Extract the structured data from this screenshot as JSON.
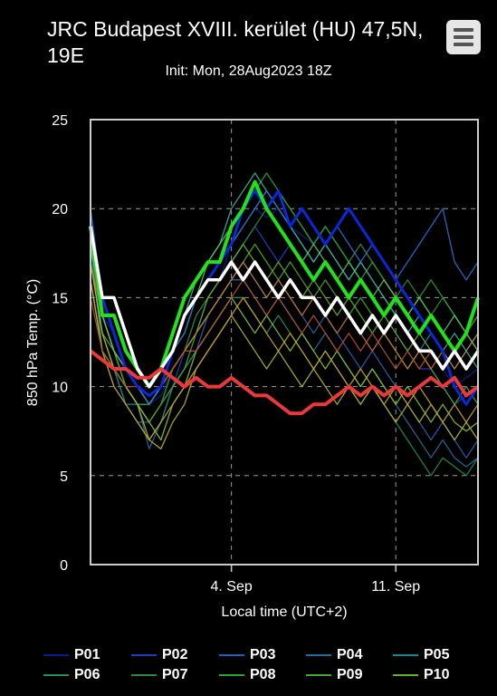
{
  "header": {
    "title": "JRC Budapest XVIII. kerület (HU) 47,5N, 19E",
    "subtitle": "Init: Mon, 28Aug2023 18Z",
    "menu_icon": "hamburger-menu-icon"
  },
  "chart_data": {
    "type": "line",
    "title": "JRC Budapest XVIII. kerület (HU) 47,5N, 19E",
    "subtitle": "Init: Mon, 28Aug2023 18Z",
    "xlabel": "Local time (UTC+2)",
    "ylabel": "850 hPa Temp. (°C)",
    "ylim": [
      0,
      25
    ],
    "yticks": [
      0,
      5,
      10,
      15,
      20,
      25
    ],
    "xlim": [
      "2023-08-29T00:00",
      "2023-09-14T12:00"
    ],
    "xticks": [
      {
        "x": "2023-09-04T00:00",
        "label": "4. Sep"
      },
      {
        "x": "2023-09-11T00:00",
        "label": "11. Sep"
      }
    ],
    "grid": true,
    "legend_position": "bottom",
    "x": [
      "2023-08-29T00:00",
      "2023-08-29T12:00",
      "2023-08-30T00:00",
      "2023-08-30T12:00",
      "2023-08-31T00:00",
      "2023-08-31T12:00",
      "2023-09-01T00:00",
      "2023-09-01T12:00",
      "2023-09-02T00:00",
      "2023-09-02T12:00",
      "2023-09-03T00:00",
      "2023-09-03T12:00",
      "2023-09-04T00:00",
      "2023-09-04T12:00",
      "2023-09-05T00:00",
      "2023-09-05T12:00",
      "2023-09-06T00:00",
      "2023-09-06T12:00",
      "2023-09-07T00:00",
      "2023-09-07T12:00",
      "2023-09-08T00:00",
      "2023-09-08T12:00",
      "2023-09-09T00:00",
      "2023-09-09T12:00",
      "2023-09-10T00:00",
      "2023-09-10T12:00",
      "2023-09-11T00:00",
      "2023-09-11T12:00",
      "2023-09-12T00:00",
      "2023-09-12T12:00",
      "2023-09-13T00:00",
      "2023-09-13T12:00",
      "2023-09-14T00:00",
      "2023-09-14T12:00"
    ],
    "series": [
      {
        "name": "P01",
        "color": "#0b1f8c",
        "values": [
          19,
          14,
          13,
          11,
          10,
          9,
          9.5,
          11,
          12,
          14,
          15,
          16,
          18,
          19,
          20,
          19.5,
          20,
          19,
          18.5,
          18,
          19,
          18,
          17,
          18,
          17,
          16,
          15,
          14,
          13,
          12,
          11,
          10,
          10.5,
          11
        ]
      },
      {
        "name": "P02",
        "color": "#1f3fbf",
        "values": [
          18,
          13,
          12,
          10,
          9,
          8,
          9,
          10,
          12,
          13,
          15,
          16,
          17,
          18,
          19,
          18,
          17,
          18,
          17,
          16,
          17,
          16,
          15,
          16,
          15,
          14,
          13,
          12,
          11,
          11,
          10,
          9,
          9.5,
          10
        ]
      },
      {
        "name": "P03",
        "color": "#2a5fb0",
        "values": [
          20,
          14,
          12,
          10,
          9,
          6.5,
          8,
          10,
          11,
          12,
          14,
          15,
          16,
          17,
          16,
          15,
          16,
          15,
          14,
          13,
          14,
          13,
          12,
          11,
          12,
          11,
          10,
          9,
          8,
          7,
          8,
          7,
          6,
          7
        ]
      },
      {
        "name": "P04",
        "color": "#1f6f99",
        "values": [
          17,
          13,
          11,
          9,
          8,
          8,
          9,
          11,
          12,
          13,
          14,
          15,
          16,
          16,
          15,
          14,
          15,
          14,
          13,
          12,
          13,
          12,
          11,
          10,
          11,
          10,
          9,
          8,
          7,
          6,
          7,
          6,
          5.5,
          6
        ]
      },
      {
        "name": "P05",
        "color": "#1a8a8a",
        "values": [
          18,
          12,
          11,
          9,
          9,
          9,
          10,
          12,
          13,
          15,
          16,
          17,
          18,
          19,
          20,
          21,
          20,
          19,
          18,
          17,
          18,
          17,
          16,
          17,
          16,
          15,
          14,
          13,
          12,
          13,
          12,
          11,
          12,
          13
        ]
      },
      {
        "name": "P06",
        "color": "#1e8f5a",
        "values": [
          16,
          12,
          10,
          9,
          8,
          7,
          8,
          10,
          11,
          12,
          13,
          14,
          15,
          15,
          14,
          13,
          14,
          13,
          12,
          11,
          12,
          11,
          10,
          9,
          10,
          9,
          8,
          7,
          6,
          5,
          6,
          5.5,
          5,
          6
        ]
      },
      {
        "name": "P07",
        "color": "#2e8b3a",
        "values": [
          17,
          13,
          11,
          10,
          9,
          8,
          9,
          11,
          12,
          14,
          15,
          16,
          17,
          18,
          19,
          20,
          21,
          20,
          19,
          18,
          19,
          18,
          17,
          18,
          17,
          16,
          15,
          16,
          15,
          14,
          15,
          14,
          13,
          14
        ]
      },
      {
        "name": "P08",
        "color": "#26a336",
        "values": [
          18,
          14,
          12,
          10,
          9,
          9,
          10,
          12,
          13,
          15,
          16,
          17,
          19,
          20,
          21,
          22,
          21,
          20,
          19,
          18,
          19,
          18,
          17,
          16,
          17,
          16,
          15,
          14,
          15,
          16,
          15,
          14,
          13,
          14
        ]
      },
      {
        "name": "P09",
        "color": "#45a82d",
        "values": [
          17,
          13,
          12,
          10,
          9,
          8,
          9,
          10,
          11,
          13,
          14,
          15,
          16,
          17,
          18,
          17,
          16,
          17,
          16,
          15,
          16,
          15,
          14,
          15,
          14,
          13,
          12,
          11,
          12,
          11,
          10,
          9,
          10,
          9
        ]
      },
      {
        "name": "P10",
        "color": "#63b323",
        "values": [
          18,
          14,
          12,
          11,
          10,
          9,
          10,
          11,
          12,
          13,
          15,
          16,
          17,
          18,
          17,
          16,
          17,
          16,
          15,
          16,
          15,
          14,
          15,
          14,
          13,
          14,
          13,
          12,
          13,
          12,
          11,
          12,
          11,
          12
        ]
      },
      {
        "name": "",
        "color": "#8fbf3a",
        "values": [
          16,
          12,
          11,
          10,
          9,
          8,
          7,
          9,
          10,
          12,
          13,
          14,
          15,
          14,
          13,
          14,
          13,
          12,
          13,
          12,
          11,
          12,
          11,
          10,
          11,
          10,
          9,
          10,
          9,
          8,
          9,
          8,
          7.5,
          8
        ]
      },
      {
        "name": "",
        "color": "#b5b52a",
        "values": [
          17,
          13,
          11,
          10,
          9,
          7,
          6.5,
          8,
          9,
          11,
          12,
          13,
          14,
          13,
          12,
          11,
          12,
          11,
          10,
          11,
          10,
          9,
          10,
          9,
          10,
          9,
          8,
          9,
          8,
          9,
          8,
          7,
          8,
          7
        ]
      },
      {
        "name": "",
        "color": "#c9a32a",
        "values": [
          16,
          12,
          10,
          9,
          8,
          7,
          8,
          9,
          10,
          11,
          12,
          13,
          14,
          15,
          14,
          13,
          12,
          13,
          12,
          11,
          12,
          11,
          10,
          11,
          10,
          9,
          10,
          9,
          10,
          9,
          8,
          9,
          8,
          9
        ]
      },
      {
        "name": "",
        "color": "#c7792e",
        "values": [
          17,
          14,
          12,
          11,
          10,
          9,
          10,
          11,
          12,
          13,
          14,
          15,
          16,
          17,
          16,
          15,
          16,
          15,
          14,
          15,
          14,
          13,
          14,
          13,
          12,
          13,
          12,
          11,
          12,
          11,
          12,
          11,
          12,
          13
        ]
      },
      {
        "name": "",
        "color": "#b8502e",
        "values": [
          15,
          12,
          11,
          10,
          10,
          9,
          10,
          11,
          12,
          12,
          13,
          14,
          15,
          16,
          15,
          14,
          15,
          14,
          13,
          14,
          13,
          12,
          13,
          12,
          13,
          12,
          11,
          12,
          11,
          12,
          11,
          12,
          13,
          12
        ]
      },
      {
        "name": "",
        "color": "#3fb0a0",
        "values": [
          19,
          15,
          13,
          11,
          10,
          9,
          10,
          12,
          14,
          16,
          17,
          18,
          20,
          21,
          22,
          21,
          20,
          19,
          18,
          17,
          18,
          17,
          16,
          17,
          16,
          15,
          14,
          13,
          14,
          13,
          12,
          13,
          12,
          11
        ]
      },
      {
        "name": "",
        "color": "#5ec26a",
        "values": [
          18,
          14,
          12,
          11,
          10,
          9,
          10,
          12,
          14,
          15,
          17,
          18,
          19,
          20,
          21,
          20,
          19,
          18,
          17,
          18,
          17,
          16,
          17,
          16,
          15,
          16,
          15,
          14,
          15,
          14,
          13,
          14,
          13,
          12
        ]
      },
      {
        "name": "",
        "color": "#2f6fd0",
        "values": [
          20,
          15,
          13,
          11,
          10,
          9,
          10,
          12,
          13,
          15,
          16,
          17,
          18,
          19,
          20,
          21,
          20,
          19,
          20,
          19,
          18,
          19,
          18,
          17,
          18,
          17,
          16,
          17,
          18,
          19,
          20,
          17,
          16,
          17
        ]
      },
      {
        "name": "",
        "color": "#0a28d8",
        "values": [
          19,
          15,
          13,
          11,
          10,
          9.5,
          10,
          12,
          14,
          15,
          16,
          17,
          18,
          20,
          21,
          20,
          21,
          19,
          20,
          19,
          18,
          19,
          20,
          19,
          18,
          17,
          16,
          15,
          14,
          13,
          12,
          10,
          9,
          10
        ],
        "width": 3
      },
      {
        "name": "",
        "color": "#22e01a",
        "values": [
          19,
          14,
          14,
          12,
          11,
          10,
          11,
          13,
          15,
          16,
          17,
          17,
          19,
          20,
          21.5,
          20,
          19,
          18,
          17,
          16,
          17,
          16,
          15,
          16,
          15,
          14,
          15,
          14,
          13,
          14,
          13,
          12,
          13,
          15
        ],
        "width": 4
      },
      {
        "name": "",
        "color": "#ffffff",
        "values": [
          19,
          15,
          15,
          13,
          11,
          10,
          11,
          12,
          14,
          15,
          16,
          16,
          17,
          16,
          17,
          16,
          15,
          16,
          15,
          15,
          14,
          15,
          14,
          13,
          14,
          13,
          14,
          13,
          12,
          12,
          11,
          12,
          11,
          12
        ],
        "width": 3.5
      },
      {
        "name": "",
        "color": "#e83a3a",
        "values": [
          12,
          11.5,
          11,
          11,
          10.5,
          10.5,
          11,
          10.5,
          10,
          10.5,
          10,
          10,
          10.5,
          10,
          9.5,
          9.5,
          9,
          8.5,
          8.5,
          9,
          9,
          9.5,
          10,
          9.5,
          10,
          9.5,
          10,
          9.5,
          10,
          10.5,
          10,
          10.5,
          9.5,
          10
        ],
        "width": 4
      }
    ]
  },
  "legend": [
    {
      "label": "P01",
      "color": "#0b1f8c"
    },
    {
      "label": "P02",
      "color": "#1f3fbf"
    },
    {
      "label": "P03",
      "color": "#2a5fb0"
    },
    {
      "label": "P04",
      "color": "#1f6f99"
    },
    {
      "label": "P05",
      "color": "#1a8a8a"
    },
    {
      "label": "P06",
      "color": "#1e8f5a"
    },
    {
      "label": "P07",
      "color": "#2e8b3a"
    },
    {
      "label": "P08",
      "color": "#26a336"
    },
    {
      "label": "P09",
      "color": "#45a82d"
    },
    {
      "label": "P10",
      "color": "#63b323"
    }
  ]
}
